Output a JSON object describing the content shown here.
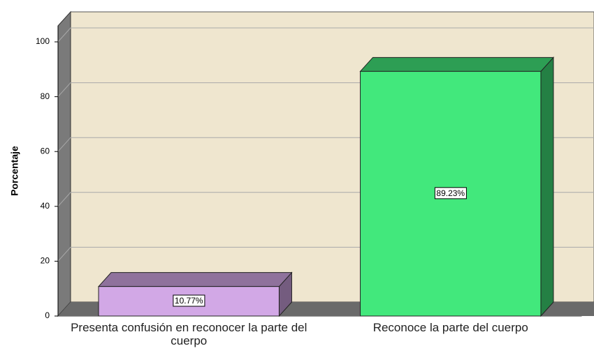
{
  "chart_data": {
    "type": "bar3d",
    "ylabel": "Porcentaje",
    "categories": [
      "Presenta confusión en reconocer la parte del cuerpo",
      "Reconoce la parte del cuerpo"
    ],
    "values": [
      10.77,
      89.23
    ],
    "value_labels": [
      "10.77%",
      "89.23%"
    ],
    "colors": [
      "#d2a8e6",
      "#42e87c"
    ],
    "ylim": [
      0,
      100
    ],
    "yticks": [
      0,
      20,
      40,
      60,
      80,
      100
    ],
    "grid": true
  }
}
